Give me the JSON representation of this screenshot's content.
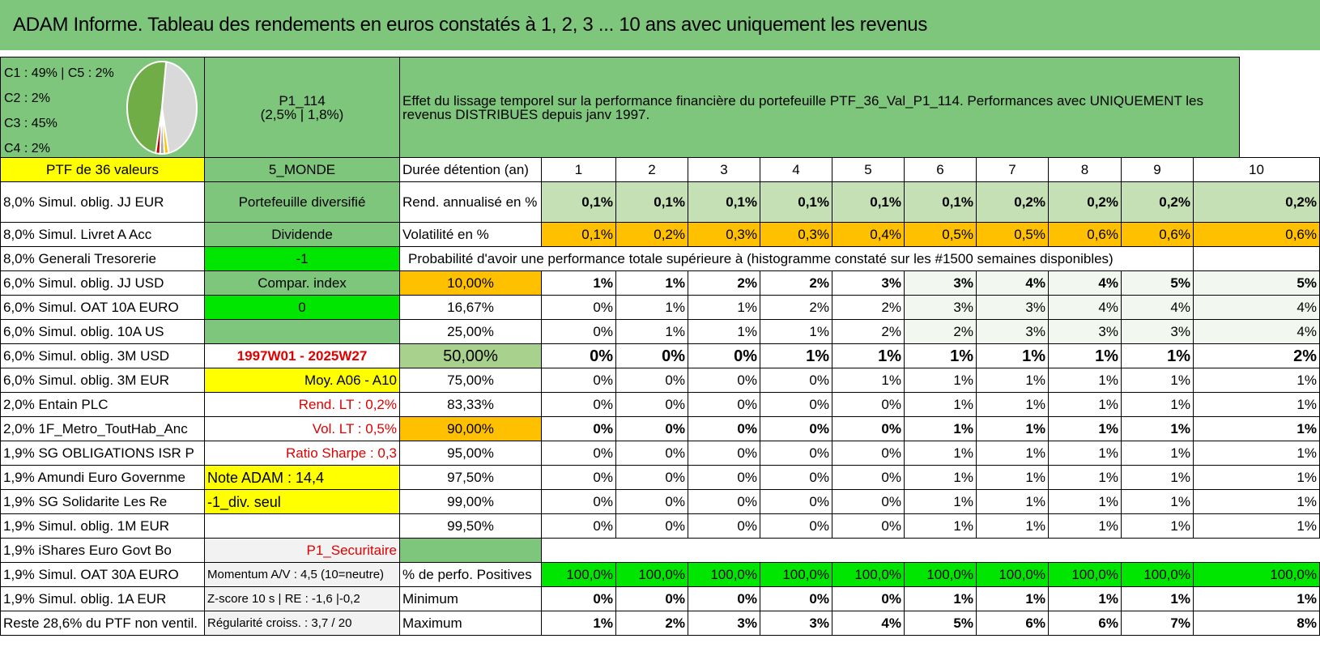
{
  "title": "ADAM Informe. Tableau des rendements en euros constatés à 1, 2, 3 ... 10 ans avec uniquement les revenus",
  "pie": {
    "labels": [
      "C1 : 49% | C5 : 2%",
      "C2 : 2%",
      "C3 : 45%",
      "C4 : 2%"
    ],
    "slices": [
      {
        "name": "C1",
        "value": 49,
        "color": "#70ad47"
      },
      {
        "name": "C2",
        "value": 2,
        "color": "#c00000"
      },
      {
        "name": "C3",
        "value": 45,
        "color": "#d9d9d9"
      },
      {
        "name": "C4",
        "value": 2,
        "color": "#ffc000"
      },
      {
        "name": "C5",
        "value": 2,
        "color": "#a5a5a5"
      }
    ]
  },
  "portfolio": {
    "code": "P1_114",
    "rates": "(2,5% | 1,8%)"
  },
  "description": "Effet du lissage temporel sur la performance financière du portefeuille PTF_36_Val_P1_114. Performances avec UNIQUEMENT les revenus DISTRIBUES depuis janv 1997.",
  "holdings": [
    "PTF de 36 valeurs",
    "8,0% Simul. oblig. JJ EUR",
    "8,0% Simul. Livret A Acc",
    "8,0% Generali Tresorerie",
    "6,0% Simul. oblig. JJ USD",
    "6,0% Simul. OAT 10A EURO",
    "6,0% Simul. oblig. 10A US",
    "6,0% Simul. oblig. 3M USD",
    "6,0% Simul. oblig. 3M EUR",
    "2,0% Entain PLC",
    "2,0% 1F_Metro_ToutHab_Anc",
    "1,9% SG OBLIGATIONS ISR P",
    "1,9% Amundi Euro Governme",
    "1,9% SG Solidarite Les Re",
    "1,9% Simul. oblig. 1M EUR",
    "1,9% iShares Euro Govt Bo",
    "1,9% Simul. OAT 30A EURO",
    "1,9% Simul. oblig. 1A EUR",
    "Reste 28,6% du PTF non ventil."
  ],
  "info": [
    "5_MONDE",
    "Portefeuille diversifié",
    "Dividende",
    "-1",
    "Compar. index",
    "0",
    "",
    "1997W01 - 2025W27",
    "Moy. A06 - A10",
    "Rend. LT : 0,2%",
    "Vol. LT : 0,5%",
    "Ratio Sharpe : 0,3",
    "Note ADAM : 14,4",
    "-1_div. seul",
    "",
    "P1_Securitaire",
    "Momentum A/V : 4,5 (10=neutre)",
    "Z-score 10 s | RE : -1,6 |-0,2",
    "Régularité croiss. : 3,7 / 20"
  ],
  "duration_label": "Durée détention (an)",
  "years": [
    "1",
    "2",
    "3",
    "4",
    "5",
    "6",
    "7",
    "8",
    "9",
    "10"
  ],
  "rend": {
    "label": "Rend. annualisé en %",
    "values": [
      "0,1%",
      "0,1%",
      "0,1%",
      "0,1%",
      "0,1%",
      "0,1%",
      "0,2%",
      "0,2%",
      "0,2%",
      "0,2%"
    ]
  },
  "vol": {
    "label": "Volatilité en %",
    "values": [
      "0,1%",
      "0,2%",
      "0,3%",
      "0,3%",
      "0,4%",
      "0,5%",
      "0,5%",
      "0,6%",
      "0,6%",
      "0,6%"
    ]
  },
  "prob_title": "Probabilité d'avoir une performance totale supérieure à (histogramme constaté sur les #1500 semaines disponibles)",
  "prob_rows": [
    {
      "threshold": "10,00%",
      "values": [
        "1%",
        "1%",
        "2%",
        "2%",
        "3%",
        "3%",
        "4%",
        "4%",
        "5%",
        "5%"
      ]
    },
    {
      "threshold": "16,67%",
      "values": [
        "0%",
        "1%",
        "1%",
        "2%",
        "2%",
        "3%",
        "3%",
        "4%",
        "4%",
        "4%"
      ]
    },
    {
      "threshold": "25,00%",
      "values": [
        "0%",
        "1%",
        "1%",
        "1%",
        "2%",
        "2%",
        "3%",
        "3%",
        "3%",
        "4%"
      ]
    },
    {
      "threshold": "50,00%",
      "values": [
        "0%",
        "0%",
        "0%",
        "1%",
        "1%",
        "1%",
        "1%",
        "1%",
        "1%",
        "2%"
      ]
    },
    {
      "threshold": "75,00%",
      "values": [
        "0%",
        "0%",
        "0%",
        "0%",
        "1%",
        "1%",
        "1%",
        "1%",
        "1%",
        "1%"
      ]
    },
    {
      "threshold": "83,33%",
      "values": [
        "0%",
        "0%",
        "0%",
        "0%",
        "0%",
        "1%",
        "1%",
        "1%",
        "1%",
        "1%"
      ]
    },
    {
      "threshold": "90,00%",
      "values": [
        "0%",
        "0%",
        "0%",
        "0%",
        "0%",
        "1%",
        "1%",
        "1%",
        "1%",
        "1%"
      ]
    },
    {
      "threshold": "95,00%",
      "values": [
        "0%",
        "0%",
        "0%",
        "0%",
        "0%",
        "1%",
        "1%",
        "1%",
        "1%",
        "1%"
      ]
    },
    {
      "threshold": "97,50%",
      "values": [
        "0%",
        "0%",
        "0%",
        "0%",
        "0%",
        "1%",
        "1%",
        "1%",
        "1%",
        "1%"
      ]
    },
    {
      "threshold": "99,00%",
      "values": [
        "0%",
        "0%",
        "0%",
        "0%",
        "0%",
        "1%",
        "1%",
        "1%",
        "1%",
        "1%"
      ]
    },
    {
      "threshold": "99,50%",
      "values": [
        "0%",
        "0%",
        "0%",
        "0%",
        "0%",
        "1%",
        "1%",
        "1%",
        "1%",
        "1%"
      ]
    }
  ],
  "pos": {
    "label": "% de perfo. Positives",
    "values": [
      "100,0%",
      "100,0%",
      "100,0%",
      "100,0%",
      "100,0%",
      "100,0%",
      "100,0%",
      "100,0%",
      "100,0%",
      "100,0%"
    ]
  },
  "min": {
    "label": "Minimum",
    "values": [
      "0%",
      "0%",
      "0%",
      "0%",
      "0%",
      "1%",
      "1%",
      "1%",
      "1%",
      "1%"
    ]
  },
  "max": {
    "label": "Maximum",
    "values": [
      "1%",
      "2%",
      "3%",
      "3%",
      "4%",
      "5%",
      "6%",
      "6%",
      "7%",
      "8%"
    ]
  },
  "colors": {
    "header_green": "#7fc67d",
    "yellow": "#ffff00",
    "orange": "#ffc000",
    "bright_green": "#00e600",
    "red_text": "#e00000"
  }
}
